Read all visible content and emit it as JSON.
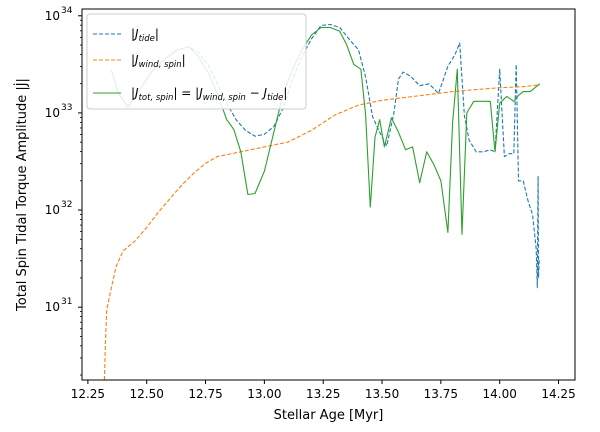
{
  "chart_data": {
    "type": "line",
    "xlabel": "Stellar Age [Myr]",
    "ylabel": "Total Spin Tidal Torque Amplitude |J̇|",
    "xlim": [
      12.225,
      14.32
    ],
    "ylim_log10": [
      30.25,
      34.07
    ],
    "y_scale": "log",
    "x_ticks": [
      12.25,
      12.5,
      12.75,
      13.0,
      13.25,
      13.5,
      13.75,
      14.0,
      14.25
    ],
    "x_tick_labels": [
      "12.25",
      "12.50",
      "12.75",
      "13.00",
      "13.25",
      "13.50",
      "13.75",
      "14.00",
      "14.25"
    ],
    "y_ticks_log10": [
      31,
      32,
      33,
      34
    ],
    "y_tick_labels": [
      "10",
      "10",
      "10",
      "10"
    ],
    "y_tick_exponents": [
      "31",
      "32",
      "33",
      "34"
    ],
    "legend_position": "top-left",
    "grid": false,
    "series": [
      {
        "name": "|J̇tide|",
        "legend_main": "|J",
        "legend_sub": "tide",
        "legend_tail": "|",
        "color": "#1f77b4",
        "dash": "4,2",
        "points": [
          [
            12.35,
            33.44
          ],
          [
            12.38,
            33.2
          ],
          [
            12.42,
            33.06
          ],
          [
            12.46,
            33.2
          ],
          [
            12.52,
            33.42
          ],
          [
            12.58,
            33.56
          ],
          [
            12.63,
            33.65
          ],
          [
            12.68,
            33.68
          ],
          [
            12.72,
            33.62
          ],
          [
            12.76,
            33.5
          ],
          [
            12.8,
            33.3
          ],
          [
            12.84,
            33.1
          ],
          [
            12.88,
            32.93
          ],
          [
            12.92,
            32.82
          ],
          [
            12.96,
            32.76
          ],
          [
            13.0,
            32.78
          ],
          [
            13.04,
            32.86
          ],
          [
            13.08,
            33.05
          ],
          [
            13.12,
            33.35
          ],
          [
            13.16,
            33.58
          ],
          [
            13.2,
            33.76
          ],
          [
            13.24,
            33.9
          ],
          [
            13.28,
            33.91
          ],
          [
            13.32,
            33.88
          ],
          [
            13.36,
            33.76
          ],
          [
            13.4,
            33.65
          ],
          [
            13.43,
            33.37
          ],
          [
            13.46,
            32.96
          ],
          [
            13.49,
            32.8
          ],
          [
            13.52,
            32.66
          ],
          [
            13.55,
            32.99
          ],
          [
            13.57,
            33.35
          ],
          [
            13.59,
            33.42
          ],
          [
            13.62,
            33.38
          ],
          [
            13.66,
            33.28
          ],
          [
            13.7,
            33.3
          ],
          [
            13.74,
            33.2
          ],
          [
            13.78,
            33.48
          ],
          [
            13.81,
            33.6
          ],
          [
            13.83,
            33.72
          ],
          [
            13.85,
            32.97
          ],
          [
            13.87,
            32.72
          ],
          [
            13.9,
            32.6
          ],
          [
            13.93,
            32.6
          ],
          [
            13.96,
            32.62
          ],
          [
            13.98,
            32.6
          ],
          [
            14.0,
            33.45
          ],
          [
            14.02,
            32.55
          ],
          [
            14.04,
            32.58
          ],
          [
            14.06,
            32.58
          ],
          [
            14.07,
            33.5
          ],
          [
            14.08,
            32.3
          ],
          [
            14.1,
            32.3
          ],
          [
            14.12,
            32.1
          ],
          [
            14.14,
            31.95
          ],
          [
            14.155,
            31.6
          ],
          [
            14.16,
            31.2
          ],
          [
            14.163,
            32.35
          ],
          [
            14.165,
            31.3
          ],
          [
            14.168,
            31.5
          ]
        ]
      },
      {
        "name": "|J̇wind,spin|",
        "legend_main": "|J",
        "legend_sub": "wind, spin",
        "legend_tail": "|",
        "color": "#ff7f0e",
        "dash": "4,2",
        "points": [
          [
            12.32,
            30.25
          ],
          [
            12.325,
            30.65
          ],
          [
            12.33,
            30.97
          ],
          [
            12.35,
            31.2
          ],
          [
            12.37,
            31.42
          ],
          [
            12.4,
            31.58
          ],
          [
            12.45,
            31.68
          ],
          [
            12.5,
            31.82
          ],
          [
            12.55,
            31.98
          ],
          [
            12.6,
            32.12
          ],
          [
            12.65,
            32.26
          ],
          [
            12.7,
            32.38
          ],
          [
            12.75,
            32.48
          ],
          [
            12.8,
            32.55
          ],
          [
            12.9,
            32.6
          ],
          [
            13.0,
            32.65
          ],
          [
            13.1,
            32.7
          ],
          [
            13.2,
            32.82
          ],
          [
            13.3,
            32.98
          ],
          [
            13.4,
            33.08
          ],
          [
            13.5,
            33.13
          ],
          [
            13.6,
            33.16
          ],
          [
            13.7,
            33.19
          ],
          [
            13.8,
            33.22
          ],
          [
            13.9,
            33.24
          ],
          [
            14.0,
            33.26
          ],
          [
            14.1,
            33.27
          ],
          [
            14.17,
            33.29
          ]
        ]
      },
      {
        "name": "|J̇tot,spin| = |J̇wind,spin − J̇tide|",
        "legend_main": "|J",
        "legend_sub": "tot, spin",
        "legend_tail": "| = |J",
        "legend_sub2": "wind, spin",
        "legend_tail2": " − J",
        "legend_sub3": "tide",
        "legend_tail3": "|",
        "color": "#2ca02c",
        "dash": "",
        "points": [
          [
            12.35,
            33.44
          ],
          [
            12.38,
            33.2
          ],
          [
            12.42,
            33.06
          ],
          [
            12.46,
            33.2
          ],
          [
            12.52,
            33.42
          ],
          [
            12.58,
            33.56
          ],
          [
            12.63,
            33.65
          ],
          [
            12.68,
            33.68
          ],
          [
            12.72,
            33.58
          ],
          [
            12.76,
            33.42
          ],
          [
            12.8,
            33.2
          ],
          [
            12.84,
            32.93
          ],
          [
            12.87,
            32.83
          ],
          [
            12.9,
            32.6
          ],
          [
            12.93,
            32.16
          ],
          [
            12.96,
            32.17
          ],
          [
            13.0,
            32.4
          ],
          [
            13.04,
            32.8
          ],
          [
            13.08,
            33.2
          ],
          [
            13.12,
            33.45
          ],
          [
            13.16,
            33.65
          ],
          [
            13.2,
            33.8
          ],
          [
            13.24,
            33.88
          ],
          [
            13.28,
            33.88
          ],
          [
            13.32,
            33.84
          ],
          [
            13.35,
            33.7
          ],
          [
            13.38,
            33.5
          ],
          [
            13.41,
            33.45
          ],
          [
            13.43,
            32.98
          ],
          [
            13.45,
            32.03
          ],
          [
            13.47,
            32.75
          ],
          [
            13.49,
            32.93
          ],
          [
            13.51,
            32.65
          ],
          [
            13.54,
            32.95
          ],
          [
            13.57,
            32.8
          ],
          [
            13.6,
            32.62
          ],
          [
            13.63,
            32.65
          ],
          [
            13.66,
            32.28
          ],
          [
            13.69,
            32.6
          ],
          [
            13.72,
            32.47
          ],
          [
            13.75,
            32.3
          ],
          [
            13.78,
            31.77
          ],
          [
            13.8,
            32.9
          ],
          [
            13.82,
            33.45
          ],
          [
            13.84,
            31.75
          ],
          [
            13.86,
            33.0
          ],
          [
            13.89,
            33.12
          ],
          [
            13.93,
            33.12
          ],
          [
            13.96,
            33.12
          ],
          [
            13.98,
            32.6
          ],
          [
            14.0,
            33.1
          ],
          [
            14.03,
            33.17
          ],
          [
            14.06,
            33.12
          ],
          [
            14.08,
            33.18
          ],
          [
            14.1,
            33.22
          ],
          [
            14.13,
            33.22
          ],
          [
            14.17,
            33.3
          ]
        ]
      }
    ]
  }
}
